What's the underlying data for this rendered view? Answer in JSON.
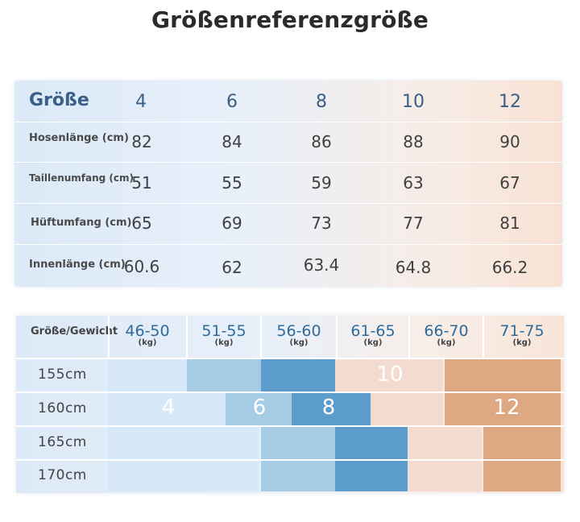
{
  "title": "Größenreferenzgröße",
  "size_table": {
    "header_label": "Größe",
    "sizes": [
      "4",
      "6",
      "8",
      "10",
      "12"
    ],
    "rows": [
      {
        "label": "Hosenlänge (cm)",
        "values": [
          "82",
          "84",
          "86",
          "88",
          "90"
        ]
      },
      {
        "label": "Taillenumfang (cm)",
        "values": [
          "51",
          "55",
          "59",
          "63",
          "67"
        ]
      },
      {
        "label": "Hüftumfang (cm)",
        "values": [
          "65",
          "69",
          "73",
          "77",
          "81"
        ]
      },
      {
        "label": "Innenlänge (cm)",
        "values": [
          "60.6",
          "62",
          "63.4",
          "64.8",
          "66.2"
        ]
      }
    ]
  },
  "fit_chart": {
    "corner_label": "Größe/Gewicht",
    "weights": [
      "46-50",
      "51-55",
      "56-60",
      "61-65",
      "66-70",
      "71-75"
    ],
    "weight_unit": "(kg)",
    "heights": [
      "155cm",
      "160cm",
      "165cm",
      "170cm"
    ],
    "size_labels": [
      "4",
      "6",
      "8",
      "10",
      "12"
    ],
    "colors": {
      "size_4": "#d7e8f6",
      "size_6": "#a6cbe4",
      "size_8": "#5d9dcc",
      "size_10": "#f3dccf",
      "size_12": "#dea882"
    }
  }
}
